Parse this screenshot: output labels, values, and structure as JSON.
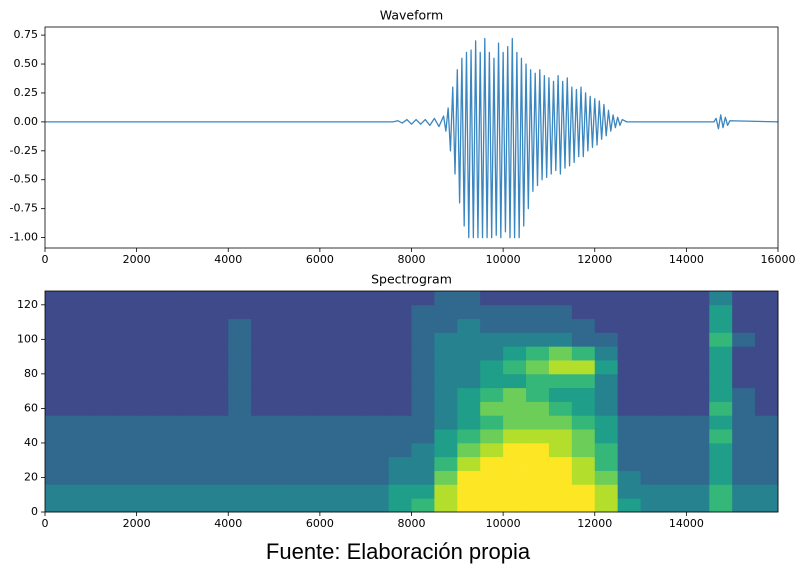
{
  "chart_data": [
    {
      "type": "line",
      "title": "Waveform",
      "color": "#3a86c0",
      "x": [
        0,
        7600,
        7700,
        7800,
        7900,
        8000,
        8100,
        8200,
        8300,
        8400,
        8500,
        8600,
        8700,
        8750,
        8800,
        8850,
        8900,
        8950,
        9000,
        9050,
        9100,
        9150,
        9200,
        9250,
        9300,
        9350,
        9400,
        9450,
        9500,
        9550,
        9600,
        9650,
        9700,
        9750,
        9800,
        9850,
        9900,
        9950,
        10000,
        10050,
        10100,
        10150,
        10200,
        10250,
        10300,
        10350,
        10400,
        10450,
        10500,
        10550,
        10600,
        10650,
        10700,
        10750,
        10800,
        10850,
        10900,
        10950,
        11000,
        11050,
        11100,
        11150,
        11200,
        11250,
        11300,
        11350,
        11400,
        11450,
        11500,
        11550,
        11600,
        11650,
        11700,
        11750,
        11800,
        11850,
        11900,
        11950,
        12000,
        12050,
        12100,
        12150,
        12200,
        12250,
        12300,
        12350,
        12400,
        12450,
        12500,
        12550,
        12600,
        12700,
        14600,
        14650,
        14700,
        14750,
        14800,
        14850,
        14900,
        14950,
        16000
      ],
      "values": [
        0,
        0,
        0.01,
        -0.01,
        0.02,
        -0.02,
        0.02,
        -0.02,
        0.02,
        -0.03,
        0.03,
        -0.04,
        0.05,
        -0.08,
        0.12,
        -0.25,
        0.3,
        -0.45,
        0.45,
        -0.7,
        0.55,
        -0.9,
        0.6,
        -1.0,
        0.62,
        -1.0,
        0.7,
        -1.0,
        0.6,
        -1.0,
        0.72,
        -1.0,
        0.6,
        -1.0,
        0.55,
        -0.98,
        0.68,
        -1.0,
        0.6,
        -0.95,
        0.65,
        -1.0,
        0.72,
        -1.0,
        0.6,
        -1.0,
        0.55,
        -0.9,
        0.5,
        -0.75,
        0.45,
        -0.6,
        0.42,
        -0.55,
        0.45,
        -0.5,
        0.4,
        -0.48,
        0.38,
        -0.45,
        0.35,
        -0.42,
        0.4,
        -0.45,
        0.35,
        -0.4,
        0.38,
        -0.38,
        0.3,
        -0.35,
        0.28,
        -0.3,
        0.3,
        -0.3,
        0.25,
        -0.25,
        0.22,
        -0.22,
        0.2,
        -0.2,
        0.18,
        -0.15,
        0.15,
        -0.12,
        0.1,
        -0.08,
        0.06,
        -0.05,
        0.04,
        -0.03,
        0.02,
        0,
        0,
        0.03,
        -0.06,
        0.06,
        -0.05,
        0.04,
        -0.03,
        0.01,
        0
      ],
      "xlim": [
        0,
        16000
      ],
      "xticks": [
        0,
        2000,
        4000,
        6000,
        8000,
        10000,
        12000,
        14000,
        16000
      ],
      "ylim": [
        -1.09,
        0.82
      ],
      "yticks": [
        {
          "value": -1,
          "label": "-1.00"
        },
        -0.75,
        {
          "value": -0.5,
          "label": "-0.50"
        },
        -0.25,
        {
          "value": 0,
          "label": "0.00"
        },
        0.25,
        {
          "value": 0.5,
          "label": "0.50"
        },
        0.75
      ]
    },
    {
      "type": "heatmap",
      "title": "Spectrogram",
      "colormap": "viridis",
      "zlim": [
        0,
        9
      ],
      "xbins": [
        0,
        500,
        1000,
        1500,
        2000,
        2500,
        3000,
        3500,
        4000,
        4500,
        5000,
        5500,
        6000,
        6500,
        7000,
        7500,
        8000,
        8500,
        9000,
        9500,
        10000,
        10500,
        11000,
        11500,
        12000,
        12500,
        13000,
        13500,
        14000,
        14500,
        15000,
        15500,
        16000
      ],
      "ybins": [
        0,
        8,
        16,
        24,
        32,
        40,
        48,
        56,
        64,
        72,
        80,
        88,
        96,
        104,
        112,
        120,
        128
      ],
      "z": [
        [
          4,
          4,
          4,
          4,
          4,
          4,
          4,
          4,
          4,
          4,
          4,
          4,
          4,
          4,
          4,
          5,
          6,
          8,
          9,
          9,
          9,
          9,
          9,
          9,
          8,
          5,
          4,
          4,
          4,
          6,
          4,
          4
        ],
        [
          4,
          4,
          4,
          4,
          4,
          4,
          4,
          4,
          4,
          4,
          4,
          4,
          4,
          4,
          4,
          5,
          5,
          8,
          9,
          9,
          9,
          9,
          9,
          9,
          8,
          4,
          4,
          4,
          4,
          6,
          4,
          4
        ],
        [
          3,
          3,
          3,
          3,
          3,
          3,
          3,
          3,
          3,
          3,
          3,
          3,
          3,
          3,
          3,
          4,
          4,
          7,
          9,
          9,
          9,
          9,
          9,
          8,
          7,
          4,
          3,
          3,
          3,
          5,
          3,
          3
        ],
        [
          3,
          3,
          3,
          3,
          3,
          3,
          3,
          3,
          3,
          3,
          3,
          3,
          3,
          3,
          3,
          4,
          4,
          6,
          8,
          9,
          9,
          9,
          9,
          8,
          6,
          3,
          3,
          3,
          3,
          5,
          3,
          3
        ],
        [
          3,
          3,
          3,
          3,
          3,
          3,
          3,
          3,
          3,
          3,
          3,
          3,
          3,
          3,
          3,
          3,
          4,
          5,
          7,
          8,
          9,
          9,
          8,
          7,
          6,
          3,
          3,
          3,
          3,
          5,
          3,
          3
        ],
        [
          3,
          3,
          3,
          3,
          3,
          3,
          3,
          3,
          3,
          3,
          3,
          3,
          3,
          3,
          3,
          3,
          3,
          5,
          6,
          7,
          8,
          8,
          8,
          7,
          5,
          3,
          3,
          3,
          3,
          6,
          3,
          3
        ],
        [
          3,
          3,
          3,
          3,
          3,
          3,
          3,
          3,
          3,
          3,
          3,
          3,
          3,
          3,
          3,
          3,
          3,
          4,
          5,
          6,
          7,
          7,
          7,
          6,
          5,
          3,
          3,
          3,
          3,
          5,
          3,
          3
        ],
        [
          2,
          2,
          2,
          2,
          2,
          2,
          2,
          2,
          3,
          2,
          2,
          2,
          2,
          2,
          2,
          2,
          3,
          4,
          5,
          7,
          7,
          7,
          6,
          5,
          4,
          2,
          2,
          2,
          2,
          6,
          3,
          2
        ],
        [
          2,
          2,
          2,
          2,
          2,
          2,
          2,
          2,
          3,
          2,
          2,
          2,
          2,
          2,
          2,
          2,
          3,
          4,
          5,
          6,
          7,
          6,
          5,
          5,
          4,
          2,
          2,
          2,
          2,
          5,
          3,
          2
        ],
        [
          2,
          2,
          2,
          2,
          2,
          2,
          2,
          2,
          3,
          2,
          2,
          2,
          2,
          2,
          2,
          2,
          3,
          4,
          4,
          5,
          5,
          6,
          6,
          6,
          4,
          2,
          2,
          2,
          2,
          5,
          2,
          2
        ],
        [
          2,
          2,
          2,
          2,
          2,
          2,
          2,
          2,
          3,
          2,
          2,
          2,
          2,
          2,
          2,
          2,
          3,
          4,
          4,
          5,
          6,
          7,
          8,
          8,
          5,
          2,
          2,
          2,
          2,
          5,
          2,
          2
        ],
        [
          2,
          2,
          2,
          2,
          2,
          2,
          2,
          2,
          3,
          2,
          2,
          2,
          2,
          2,
          2,
          2,
          3,
          4,
          4,
          4,
          5,
          6,
          7,
          6,
          4,
          2,
          2,
          2,
          2,
          5,
          2,
          2
        ],
        [
          2,
          2,
          2,
          2,
          2,
          2,
          2,
          2,
          3,
          2,
          2,
          2,
          2,
          2,
          2,
          2,
          3,
          4,
          4,
          4,
          4,
          4,
          4,
          3,
          3,
          2,
          2,
          2,
          2,
          6,
          3,
          2
        ],
        [
          2,
          2,
          2,
          2,
          2,
          2,
          2,
          2,
          3,
          2,
          2,
          2,
          2,
          2,
          2,
          2,
          3,
          3,
          4,
          3,
          3,
          3,
          3,
          3,
          2,
          2,
          2,
          2,
          2,
          5,
          2,
          2
        ],
        [
          2,
          2,
          2,
          2,
          2,
          2,
          2,
          2,
          2,
          2,
          2,
          2,
          2,
          2,
          2,
          2,
          3,
          3,
          3,
          3,
          3,
          3,
          3,
          2,
          2,
          2,
          2,
          2,
          2,
          5,
          2,
          2
        ],
        [
          2,
          2,
          2,
          2,
          2,
          2,
          2,
          2,
          2,
          2,
          2,
          2,
          2,
          2,
          2,
          2,
          2,
          3,
          3,
          2,
          2,
          2,
          2,
          2,
          2,
          2,
          2,
          2,
          2,
          4,
          2,
          2
        ]
      ],
      "xlim": [
        0,
        16000
      ],
      "xticks": [
        0,
        2000,
        4000,
        6000,
        8000,
        10000,
        12000,
        14000
      ],
      "ylim": [
        0,
        128
      ],
      "yticks": [
        0,
        20,
        40,
        60,
        80,
        100,
        120
      ]
    }
  ],
  "caption": "Fuente: Elaboración propia"
}
